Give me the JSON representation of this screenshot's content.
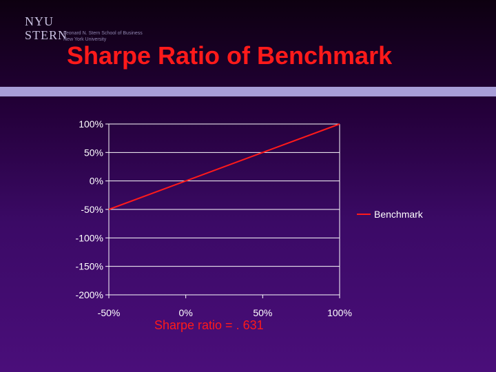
{
  "slide": {
    "title": "Sharpe Ratio of Benchmark",
    "caption": "Sharpe ratio = . 631"
  },
  "logo": {
    "nyu": "NYU",
    "stern": "STERN",
    "line1": "Leonard N. Stern School of Business",
    "line2": "New York University"
  },
  "colors": {
    "series": "#ff1a1a",
    "title": "#ff1a1a",
    "band": "#a89ed8",
    "gridline": "#ffffff"
  },
  "chart_data": {
    "type": "line",
    "title": "",
    "xlabel": "",
    "ylabel": "",
    "xlim": [
      -0.5,
      1.0
    ],
    "ylim": [
      -2.0,
      1.0
    ],
    "x_ticks": [
      "-50%",
      "0%",
      "50%",
      "100%"
    ],
    "y_ticks": [
      "100%",
      "50%",
      "0%",
      "-50%",
      "-100%",
      "-150%",
      "-200%"
    ],
    "grid": "horizontal",
    "legend": "right",
    "series": [
      {
        "name": "Benchmark",
        "x": [
          -0.5,
          1.0
        ],
        "y": [
          -0.5,
          1.0
        ]
      }
    ]
  }
}
